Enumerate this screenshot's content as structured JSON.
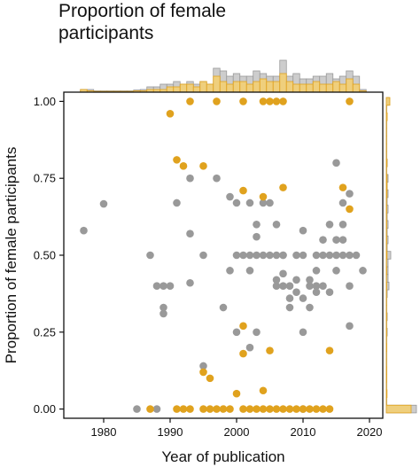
{
  "chart_data": {
    "type": "scatter",
    "title": "Proportion of female\nparticipants",
    "xlabel": "Year of publication",
    "ylabel": "Proportion of female participants",
    "xlim": [
      1974,
      2022
    ],
    "ylim": [
      -0.03,
      1.03
    ],
    "xticks": [
      1980,
      1990,
      2000,
      2010,
      2020
    ],
    "yticks": [
      0.0,
      0.25,
      0.5,
      0.75,
      1.0
    ],
    "ytick_labels": [
      "0.00",
      "0.25",
      "0.50",
      "0.75",
      "1.00"
    ],
    "grid": false,
    "colors": {
      "gold": "#E0A21E",
      "gold_fill": "#F5CF6E",
      "grey": "#999999",
      "grey_fill": "#CDCDCD"
    },
    "series": [
      {
        "color": "#999999",
        "points": [
          [
            1977,
            0.58
          ],
          [
            1980,
            0.667
          ],
          [
            1985,
            0.0
          ],
          [
            1987,
            0.5
          ],
          [
            1988,
            0.4
          ],
          [
            1988,
            0.0
          ],
          [
            1989,
            0.4
          ],
          [
            1989,
            0.33
          ],
          [
            1989,
            0.31
          ],
          [
            1990,
            0.4
          ],
          [
            1991,
            0.67
          ],
          [
            1993,
            0.75
          ],
          [
            1993,
            0.57
          ],
          [
            1993,
            0.41
          ],
          [
            1995,
            0.5
          ],
          [
            1995,
            0.14
          ],
          [
            1997,
            0.75
          ],
          [
            1998,
            0.33
          ],
          [
            1999,
            0.69
          ],
          [
            1999,
            0.45
          ],
          [
            2000,
            0.67
          ],
          [
            2000,
            0.5
          ],
          [
            2000,
            0.25
          ],
          [
            2001,
            0.5
          ],
          [
            2002,
            0.67
          ],
          [
            2002,
            0.5
          ],
          [
            2002,
            0.45
          ],
          [
            2002,
            0.2
          ],
          [
            2003,
            0.6
          ],
          [
            2003,
            0.56
          ],
          [
            2003,
            0.5
          ],
          [
            2003,
            0.25
          ],
          [
            2004,
            0.5
          ],
          [
            2004,
            0.67
          ],
          [
            2005,
            0.67
          ],
          [
            2005,
            0.5
          ],
          [
            2006,
            0.42
          ],
          [
            2006,
            0.4
          ],
          [
            2006,
            0.5
          ],
          [
            2006,
            0.6
          ],
          [
            2007,
            0.44
          ],
          [
            2007,
            0.5
          ],
          [
            2007,
            0.4
          ],
          [
            2007,
            0.5
          ],
          [
            2008,
            0.4
          ],
          [
            2008,
            0.36
          ],
          [
            2008,
            0.33
          ],
          [
            2009,
            0.5
          ],
          [
            2009,
            0.42
          ],
          [
            2009,
            0.38
          ],
          [
            2010,
            0.58
          ],
          [
            2010,
            0.5
          ],
          [
            2010,
            0.36
          ],
          [
            2010,
            0.25
          ],
          [
            2010,
            0.0
          ],
          [
            2011,
            0.42
          ],
          [
            2011,
            0.4
          ],
          [
            2011,
            0.33
          ],
          [
            2012,
            0.5
          ],
          [
            2012,
            0.45
          ],
          [
            2012,
            0.4
          ],
          [
            2012,
            0.38
          ],
          [
            2013,
            0.55
          ],
          [
            2013,
            0.5
          ],
          [
            2013,
            0.4
          ],
          [
            2014,
            0.6
          ],
          [
            2014,
            0.5
          ],
          [
            2014,
            0.38
          ],
          [
            2015,
            0.8
          ],
          [
            2015,
            0.55
          ],
          [
            2015,
            0.5
          ],
          [
            2015,
            0.45
          ],
          [
            2016,
            0.67
          ],
          [
            2016,
            0.55
          ],
          [
            2016,
            0.5
          ],
          [
            2016,
            0.6
          ],
          [
            2017,
            0.7
          ],
          [
            2017,
            0.5
          ],
          [
            2017,
            0.4
          ],
          [
            2017,
            0.27
          ],
          [
            2018,
            0.5
          ],
          [
            2019,
            0.45
          ]
        ]
      },
      {
        "color": "#E0A21E",
        "points": [
          [
            1987,
            0.0
          ],
          [
            1990,
            0.96
          ],
          [
            1991,
            0.81
          ],
          [
            1991,
            0.0
          ],
          [
            1992,
            0.79
          ],
          [
            1992,
            0.0
          ],
          [
            1993,
            1.0
          ],
          [
            1993,
            0.0
          ],
          [
            1995,
            0.79
          ],
          [
            1995,
            0.12
          ],
          [
            1996,
            0.1
          ],
          [
            1995,
            0.0
          ],
          [
            1996,
            0.0
          ],
          [
            1997,
            1.0
          ],
          [
            1997,
            0.0
          ],
          [
            1998,
            0.0
          ],
          [
            1999,
            0.0
          ],
          [
            2000,
            0.05
          ],
          [
            2001,
            1.0
          ],
          [
            2001,
            0.71
          ],
          [
            2001,
            0.27
          ],
          [
            2001,
            0.18
          ],
          [
            2001,
            0.0
          ],
          [
            2002,
            0.0
          ],
          [
            2003,
            0.0
          ],
          [
            2004,
            0.69
          ],
          [
            2004,
            0.06
          ],
          [
            2004,
            1.0
          ],
          [
            2004,
            0.0
          ],
          [
            2005,
            1.0
          ],
          [
            2005,
            0.19
          ],
          [
            2005,
            0.0
          ],
          [
            2006,
            1.0
          ],
          [
            2006,
            0.0
          ],
          [
            2007,
            1.0
          ],
          [
            2007,
            0.72
          ],
          [
            2007,
            0.0
          ],
          [
            2008,
            0.0
          ],
          [
            2009,
            0.0
          ],
          [
            2010,
            0.0
          ],
          [
            2011,
            0.0
          ],
          [
            2012,
            0.0
          ],
          [
            2013,
            0.0
          ],
          [
            2014,
            0.19
          ],
          [
            2014,
            0.0
          ],
          [
            2016,
            0.72
          ],
          [
            2017,
            1.0
          ],
          [
            2017,
            0.65
          ]
        ]
      }
    ],
    "top_histogram": {
      "bins_x": [
        1977,
        1978,
        1979,
        1980,
        1981,
        1982,
        1983,
        1984,
        1985,
        1986,
        1987,
        1988,
        1989,
        1990,
        1991,
        1992,
        1993,
        1994,
        1995,
        1996,
        1997,
        1998,
        1999,
        2000,
        2001,
        2002,
        2003,
        2004,
        2005,
        2006,
        2007,
        2008,
        2009,
        2010,
        2011,
        2012,
        2013,
        2014,
        2015,
        2016,
        2017,
        2018,
        2019
      ],
      "grey_heights": [
        1,
        1,
        0.5,
        0.5,
        0.5,
        0.5,
        0.5,
        0.5,
        0.8,
        1,
        2,
        2,
        3,
        3,
        4,
        3,
        4,
        3,
        4,
        3,
        9,
        8,
        6,
        7,
        6,
        6,
        8,
        7,
        6,
        6,
        12,
        6,
        7,
        5,
        5,
        6,
        6,
        7,
        5,
        6,
        8,
        6,
        1
      ],
      "gold_heights": [
        1,
        0.5,
        0.3,
        0.3,
        0.3,
        0.3,
        0.3,
        0.3,
        0.5,
        0.5,
        1,
        1,
        1,
        2,
        2,
        3,
        3,
        2,
        4,
        3,
        6,
        4,
        3,
        4,
        4,
        3,
        4,
        5,
        4,
        4,
        7,
        4,
        3,
        3,
        3,
        4,
        3,
        3,
        4,
        3,
        5,
        3,
        0.5
      ]
    },
    "right_histogram": {
      "bins_y": [
        0.0,
        0.025,
        0.05,
        0.075,
        0.1,
        0.125,
        0.15,
        0.175,
        0.2,
        0.225,
        0.25,
        0.275,
        0.3,
        0.325,
        0.35,
        0.375,
        0.4,
        0.425,
        0.45,
        0.475,
        0.5,
        0.525,
        0.55,
        0.575,
        0.6,
        0.625,
        0.65,
        0.675,
        0.7,
        0.725,
        0.75,
        0.775,
        0.8,
        0.825,
        0.85,
        0.875,
        0.9,
        0.925,
        0.95,
        0.975,
        1.0
      ],
      "grey_widths": [
        34,
        0.5,
        0.5,
        0.5,
        0.5,
        0.5,
        0.5,
        0.5,
        0.5,
        0.5,
        1,
        0.5,
        1,
        0.5,
        0.5,
        1,
        3,
        2,
        2,
        2,
        5,
        1,
        2,
        1,
        2,
        1,
        2,
        1,
        2,
        1,
        2,
        0.5,
        1,
        0.5,
        0.5,
        0.5,
        0.5,
        0.5,
        0.5,
        0.5,
        3
      ],
      "gold_widths": [
        28,
        0.3,
        0.8,
        0.3,
        0.5,
        0.5,
        0.3,
        0.3,
        0.5,
        0.3,
        0.5,
        0.3,
        0.5,
        0.3,
        0.3,
        0.3,
        0.5,
        0.3,
        0.5,
        0.3,
        0.8,
        0.3,
        0.5,
        0.3,
        0.5,
        0.3,
        0.5,
        0.3,
        0.8,
        0.8,
        0.8,
        0.3,
        0.8,
        0.3,
        0.3,
        0.3,
        0.3,
        0.3,
        1,
        0.3,
        4
      ]
    }
  }
}
